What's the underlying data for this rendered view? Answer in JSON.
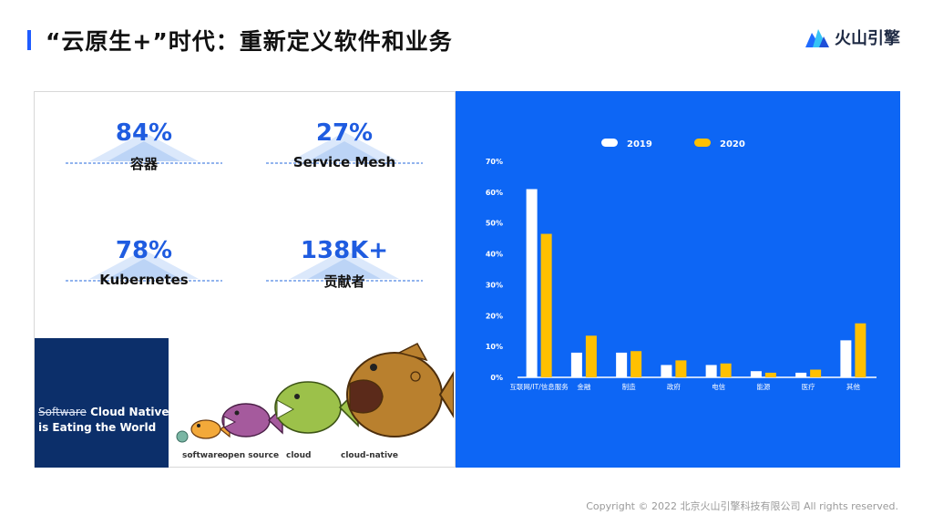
{
  "header": {
    "title": "“云原生+”时代：重新定义软件和业务",
    "brand_name": "火山引擎",
    "logo_icon": "volcano-mountain-logo"
  },
  "stats": [
    {
      "value": "84%",
      "label": "容器"
    },
    {
      "value": "27%",
      "label": "Service Mesh"
    },
    {
      "value": "78%",
      "label": "Kubernetes"
    },
    {
      "value": "138K+",
      "label": "贡献者"
    }
  ],
  "illustration": {
    "book_strike": "Software",
    "book_title_rest": " Cloud Native",
    "book_line2": "is Eating the World",
    "fish_labels": [
      "software",
      "open source",
      "cloud",
      "cloud-native"
    ]
  },
  "chart_data": {
    "type": "bar",
    "categories": [
      "互联网/IT/信息服务",
      "金融",
      "制造",
      "政府",
      "电信",
      "能源",
      "医疗",
      "其他"
    ],
    "series": [
      {
        "name": "2019",
        "values": [
          61,
          8,
          8,
          4,
          4,
          2,
          1.5,
          12
        ],
        "color": "#ffffff"
      },
      {
        "name": "2020",
        "values": [
          46.5,
          13.5,
          8.5,
          5.5,
          4.5,
          1.5,
          2.5,
          17.5
        ],
        "color": "#ffc000"
      }
    ],
    "yticks": [
      "0%",
      "10%",
      "20%",
      "30%",
      "40%",
      "50%",
      "60%",
      "70%"
    ],
    "ylim": [
      0,
      70
    ],
    "legend_position": "top-center",
    "grid": false
  },
  "footer": {
    "copyright": "Copyright © 2022 北京火山引擎科技有限公司 All rights reserved."
  }
}
